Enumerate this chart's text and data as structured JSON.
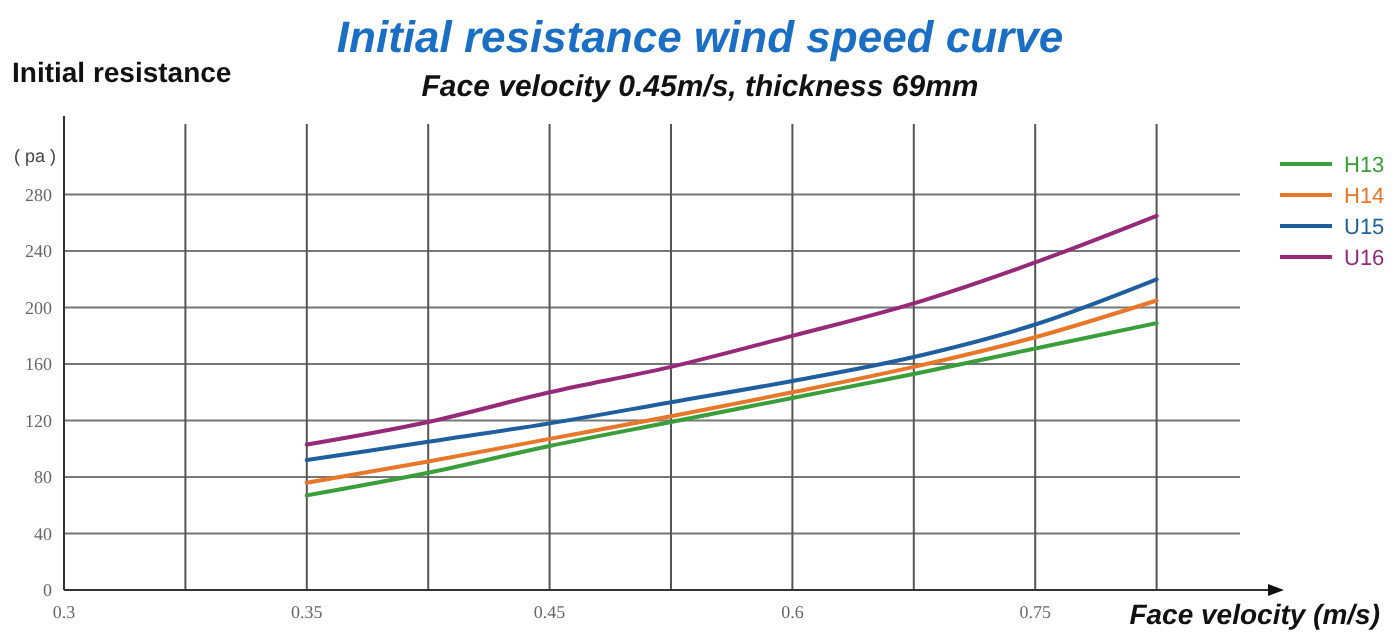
{
  "chart_data": {
    "type": "line",
    "title": "Initial resistance wind speed curve",
    "subtitle": "Face velocity 0.45m/s, thickness 69mm",
    "ylabel": "Initial resistance",
    "xlabel": "Face velocity (m/s)",
    "annotations": [
      "( pa )"
    ],
    "categories": [
      "0.3",
      null,
      "0.35",
      null,
      "0.45",
      null,
      "0.6",
      null,
      "0.75",
      null
    ],
    "series": [
      {
        "name": "H13",
        "color": "#3a9e3a",
        "values": [
          null,
          null,
          67,
          83,
          102,
          119,
          136,
          153,
          171,
          189
        ]
      },
      {
        "name": "H14",
        "color": "#e8772a",
        "values": [
          null,
          null,
          76,
          91,
          107,
          123,
          140,
          158,
          179,
          205
        ]
      },
      {
        "name": "U15",
        "color": "#1f5f9f",
        "values": [
          null,
          null,
          92,
          105,
          118,
          133,
          148,
          165,
          188,
          220
        ]
      },
      {
        "name": "U16",
        "color": "#962a78",
        "values": [
          null,
          null,
          103,
          119,
          140,
          158,
          180,
          203,
          232,
          265
        ]
      }
    ],
    "ylim": [
      0,
      330
    ],
    "yticks": [
      0,
      40,
      80,
      120,
      160,
      200,
      240,
      280
    ],
    "grid": true,
    "legend": "right",
    "marker": "none",
    "line_style": "solid"
  }
}
